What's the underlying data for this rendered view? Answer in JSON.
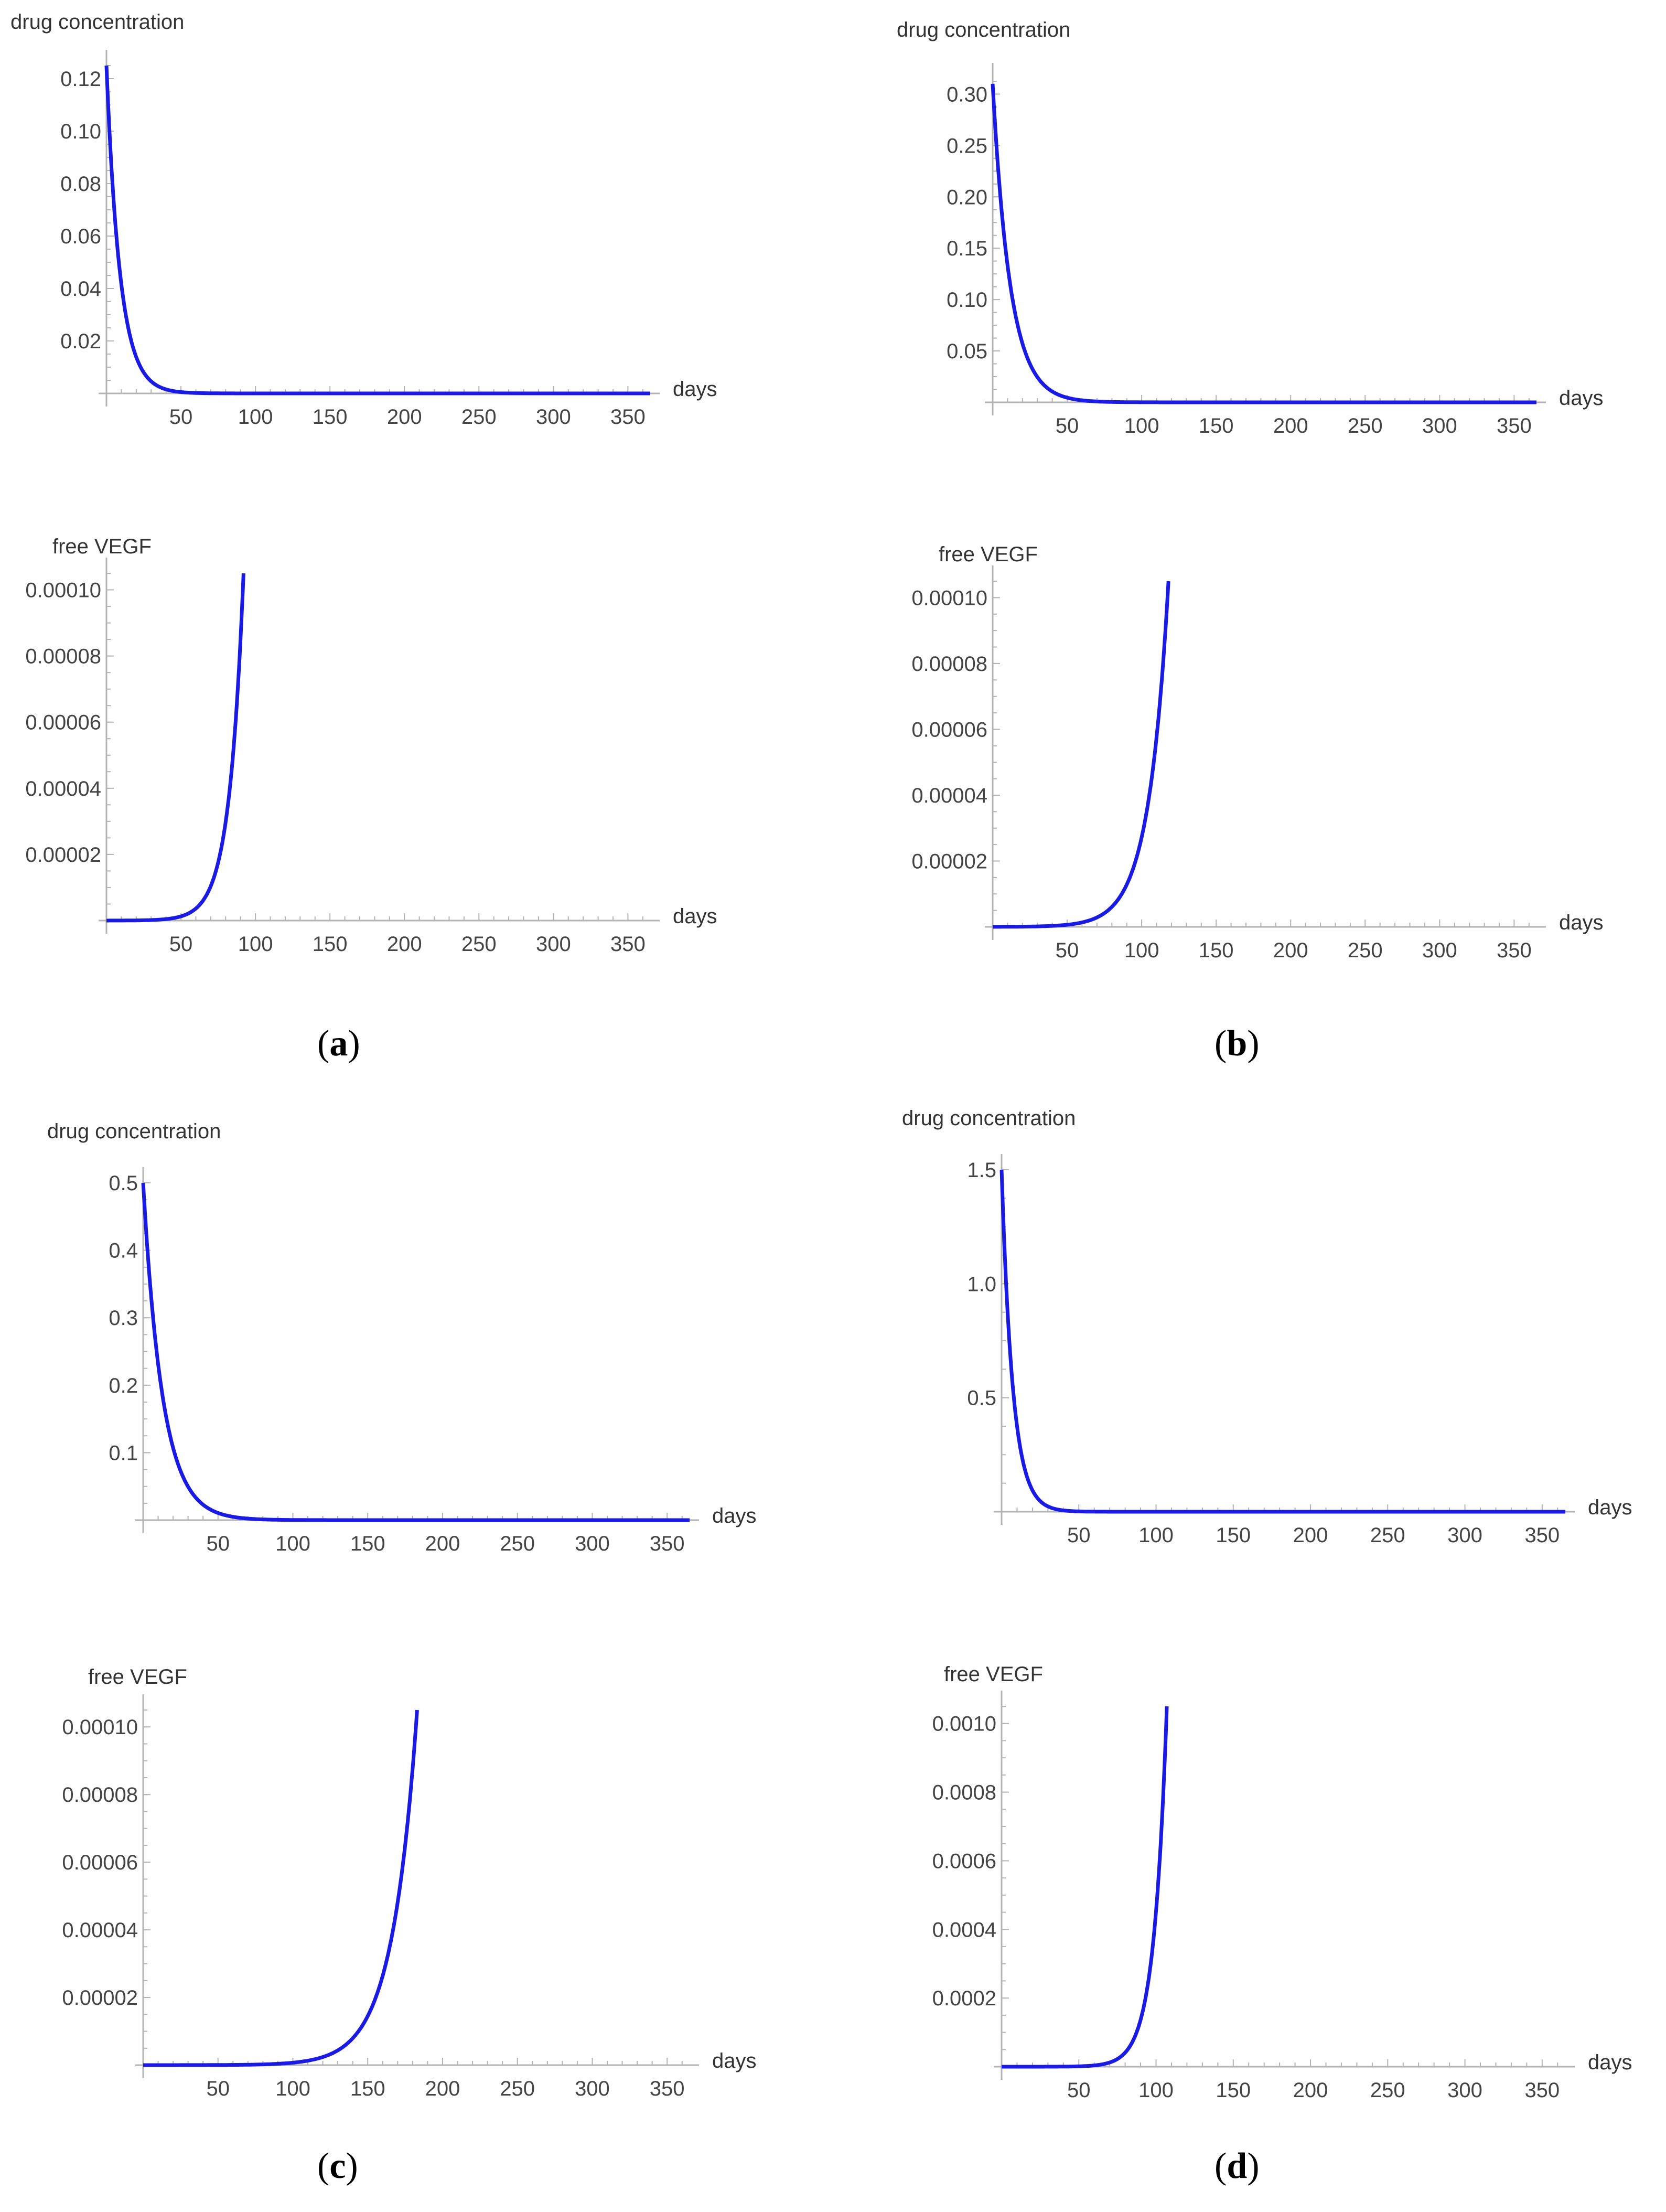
{
  "figure": {
    "captions": [
      {
        "open": "(",
        "letter": "a",
        "close": ")"
      },
      {
        "open": "(",
        "letter": "b",
        "close": ")"
      },
      {
        "open": "(",
        "letter": "c",
        "close": ")"
      },
      {
        "open": "(",
        "letter": "d",
        "close": ")"
      }
    ]
  },
  "chart_data": [
    {
      "panel": "a",
      "type": "line",
      "ylabel": "drug concentration",
      "xlabel": "days",
      "xlim": [
        0,
        365
      ],
      "ylim": [
        0,
        0.125
      ],
      "xticks": [
        50,
        100,
        150,
        200,
        250,
        300,
        350
      ],
      "xtick_labels": [
        "50",
        "100",
        "150",
        "200",
        "250",
        "300",
        "350"
      ],
      "yticks": [
        0.02,
        0.04,
        0.06,
        0.08,
        0.1,
        0.12
      ],
      "ytick_labels": [
        "0.02",
        "0.04",
        "0.06",
        "0.08",
        "0.10",
        "0.12"
      ],
      "series": [
        {
          "name": "drug concentration",
          "color": "#1a1ae6",
          "model": "decay",
          "y0": 0.125,
          "half_life": 6.3,
          "x_end": 365
        }
      ]
    },
    {
      "panel": "a",
      "type": "line",
      "ylabel": "free VEGF",
      "xlabel": "days",
      "xlim": [
        0,
        365
      ],
      "ylim": [
        0,
        0.000105
      ],
      "xticks": [
        50,
        100,
        150,
        200,
        250,
        300,
        350
      ],
      "xtick_labels": [
        "50",
        "100",
        "150",
        "200",
        "250",
        "300",
        "350"
      ],
      "yticks": [
        2e-05,
        4e-05,
        6e-05,
        8e-05,
        0.0001
      ],
      "ytick_labels": [
        "0.00002",
        "0.00004",
        "0.00006",
        "0.00008",
        "0.00010"
      ],
      "series": [
        {
          "name": "free VEGF",
          "color": "#1a1ae6",
          "model": "growth",
          "y_end": 0.000105,
          "x_end": 92,
          "rate": 0.105
        }
      ]
    },
    {
      "panel": "b",
      "type": "line",
      "ylabel": "drug concentration",
      "xlabel": "days",
      "xlim": [
        0,
        365
      ],
      "ylim": [
        0,
        0.315
      ],
      "xticks": [
        50,
        100,
        150,
        200,
        250,
        300,
        350
      ],
      "xtick_labels": [
        "50",
        "100",
        "150",
        "200",
        "250",
        "300",
        "350"
      ],
      "yticks": [
        0.05,
        0.1,
        0.15,
        0.2,
        0.25,
        0.3
      ],
      "ytick_labels": [
        "0.05",
        "0.10",
        "0.15",
        "0.20",
        "0.25",
        "0.30"
      ],
      "series": [
        {
          "name": "drug concentration",
          "color": "#1a1ae6",
          "model": "decay",
          "y0": 0.31,
          "half_life": 8.2,
          "x_end": 365
        }
      ]
    },
    {
      "panel": "b",
      "type": "line",
      "ylabel": "free VEGF",
      "xlabel": "days",
      "xlim": [
        0,
        365
      ],
      "ylim": [
        0,
        0.000105
      ],
      "xticks": [
        50,
        100,
        150,
        200,
        250,
        300,
        350
      ],
      "xtick_labels": [
        "50",
        "100",
        "150",
        "200",
        "250",
        "300",
        "350"
      ],
      "yticks": [
        2e-05,
        4e-05,
        6e-05,
        8e-05,
        0.0001
      ],
      "ytick_labels": [
        "0.00002",
        "0.00004",
        "0.00006",
        "0.00008",
        "0.00010"
      ],
      "series": [
        {
          "name": "free VEGF",
          "color": "#1a1ae6",
          "model": "growth",
          "y_end": 0.000105,
          "x_end": 118,
          "rate": 0.075
        }
      ]
    },
    {
      "panel": "c",
      "type": "line",
      "ylabel": "drug concentration",
      "xlabel": "days",
      "xlim": [
        0,
        365
      ],
      "ylim": [
        0,
        0.5
      ],
      "xticks": [
        50,
        100,
        150,
        200,
        250,
        300,
        350
      ],
      "xtick_labels": [
        "50",
        "100",
        "150",
        "200",
        "250",
        "300",
        "350"
      ],
      "yticks": [
        0.1,
        0.2,
        0.3,
        0.4,
        0.5
      ],
      "ytick_labels": [
        "0.1",
        "0.2",
        "0.3",
        "0.4",
        "0.5"
      ],
      "series": [
        {
          "name": "drug concentration",
          "color": "#1a1ae6",
          "model": "decay",
          "y0": 0.5,
          "half_life": 9.0,
          "x_end": 365
        }
      ]
    },
    {
      "panel": "c",
      "type": "line",
      "ylabel": "free VEGF",
      "xlabel": "days",
      "xlim": [
        0,
        365
      ],
      "ylim": [
        0,
        0.000105
      ],
      "xticks": [
        50,
        100,
        150,
        200,
        250,
        300,
        350
      ],
      "xtick_labels": [
        "50",
        "100",
        "150",
        "200",
        "250",
        "300",
        "350"
      ],
      "yticks": [
        2e-05,
        4e-05,
        6e-05,
        8e-05,
        0.0001
      ],
      "ytick_labels": [
        "0.00002",
        "0.00004",
        "0.00006",
        "0.00008",
        "0.00010"
      ],
      "series": [
        {
          "name": "free VEGF",
          "color": "#1a1ae6",
          "model": "growth",
          "y_end": 0.000105,
          "x_end": 183,
          "rate": 0.06
        }
      ]
    },
    {
      "panel": "d",
      "type": "line",
      "ylabel": "drug concentration",
      "xlabel": "days",
      "xlim": [
        0,
        365
      ],
      "ylim": [
        0,
        1.5
      ],
      "xticks": [
        50,
        100,
        150,
        200,
        250,
        300,
        350
      ],
      "xtick_labels": [
        "50",
        "100",
        "150",
        "200",
        "250",
        "300",
        "350"
      ],
      "yticks": [
        0.5,
        1.0,
        1.5
      ],
      "ytick_labels": [
        "0.5",
        "1.0",
        "1.5"
      ],
      "series": [
        {
          "name": "drug concentration",
          "color": "#1a1ae6",
          "model": "decay",
          "y0": 1.5,
          "half_life": 5.0,
          "x_end": 365
        }
      ]
    },
    {
      "panel": "d",
      "type": "line",
      "ylabel": "free VEGF",
      "xlabel": "days",
      "xlim": [
        0,
        365
      ],
      "ylim": [
        0,
        0.00105
      ],
      "xticks": [
        50,
        100,
        150,
        200,
        250,
        300,
        350
      ],
      "xtick_labels": [
        "50",
        "100",
        "150",
        "200",
        "250",
        "300",
        "350"
      ],
      "yticks": [
        0.0002,
        0.0004,
        0.0006,
        0.0008,
        0.001
      ],
      "ytick_labels": [
        "0.0002",
        "0.0004",
        "0.0006",
        "0.0008",
        "0.0010"
      ],
      "series": [
        {
          "name": "free VEGF",
          "color": "#1a1ae6",
          "model": "growth",
          "y_end": 0.00105,
          "x_end": 107,
          "rate": 0.12
        }
      ]
    }
  ]
}
